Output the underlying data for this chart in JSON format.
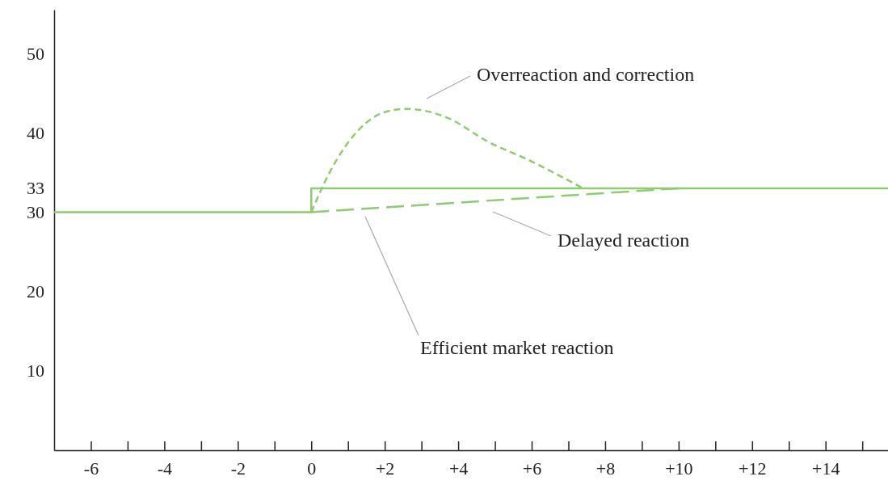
{
  "chart_data": {
    "type": "line",
    "xlim": [
      -7,
      15.7
    ],
    "ylim": [
      0,
      55.5
    ],
    "xticks": [
      -6,
      {
        "value": -5,
        "label": null
      },
      -4,
      {
        "value": -3,
        "label": null
      },
      -2,
      {
        "value": -1,
        "label": null
      },
      0,
      {
        "value": 1,
        "label": null
      },
      {
        "value": 2,
        "label": "+2"
      },
      {
        "value": 3,
        "label": null
      },
      {
        "value": 4,
        "label": "+4"
      },
      {
        "value": 5,
        "label": null
      },
      {
        "value": 6,
        "label": "+6"
      },
      {
        "value": 7,
        "label": null
      },
      {
        "value": 8,
        "label": "+8"
      },
      {
        "value": 9,
        "label": null
      },
      {
        "value": 10,
        "label": "+10"
      },
      {
        "value": 11,
        "label": null
      },
      {
        "value": 12,
        "label": "+12"
      },
      {
        "value": 13,
        "label": null
      },
      {
        "value": 14,
        "label": "+14"
      },
      {
        "value": 15,
        "label": null
      }
    ],
    "yticks": [
      10,
      20,
      30,
      33,
      40,
      50
    ],
    "grid": false,
    "series": [
      {
        "name": "Efficient market reaction",
        "color": "#8fcb6f",
        "line_style": "solid",
        "x": [
          -7,
          0,
          0,
          15.7
        ],
        "values": [
          30,
          30,
          33,
          33
        ]
      },
      {
        "name": "Delayed reaction",
        "color": "#8fcb6f",
        "line_style": "dashed",
        "x": [
          0,
          10
        ],
        "values": [
          30,
          33
        ]
      },
      {
        "name": "Overreaction and correction",
        "color": "#8fcb6f",
        "line_style": "dotted",
        "x": [
          0,
          0.5,
          1.3,
          2,
          2.6,
          3.7,
          4.8,
          5.9,
          7.4
        ],
        "values": [
          30,
          35,
          40.4,
          42.6,
          43,
          41.9,
          38.9,
          36.6,
          33
        ]
      }
    ]
  }
}
